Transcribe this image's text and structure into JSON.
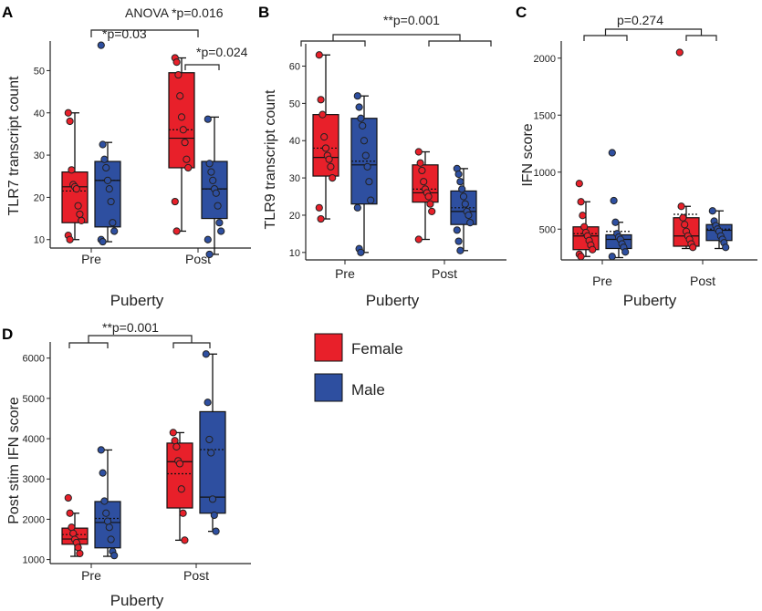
{
  "legend": [
    {
      "label": "Female",
      "color": "#e8202a"
    },
    {
      "label": "Male",
      "color": "#2e4fa0"
    }
  ],
  "chart_data": [
    {
      "panel": "A",
      "type": "box",
      "title": "ANOVA *p=0.016",
      "ylabel": "TLR7 transcript count",
      "xlabel": "Puberty",
      "categories": [
        "Pre",
        "Post"
      ],
      "ylim": [
        8,
        57
      ],
      "yticks": [
        10,
        20,
        30,
        40,
        50
      ],
      "series": [
        {
          "name": "Female",
          "groups": [
            {
              "q1": 14,
              "median": 22.5,
              "q3": 26,
              "mean": 21.5,
              "wmin": 10,
              "wmax": 40,
              "points": [
                40,
                38,
                26.5,
                23,
                22.5,
                22,
                18,
                16,
                14.5,
                11,
                10
              ]
            },
            {
              "q1": 27,
              "median": 34,
              "q3": 49.5,
              "mean": 36,
              "wmin": 12,
              "wmax": 53,
              "points": [
                53,
                52,
                49,
                44,
                39,
                36,
                33,
                29,
                27,
                19,
                12
              ]
            }
          ]
        },
        {
          "name": "Male",
          "groups": [
            {
              "q1": 13,
              "median": 24,
              "q3": 28.5,
              "mean": 24,
              "wmin": 9.5,
              "wmax": 33,
              "points": [
                56,
                32.5,
                29,
                27,
                24,
                22,
                19,
                14,
                12,
                10,
                9.5
              ]
            },
            {
              "q1": 15,
              "median": 22,
              "q3": 28.5,
              "mean": 22,
              "wmin": 6.5,
              "wmax": 39,
              "points": [
                38.5,
                28,
                26,
                24,
                22,
                21,
                18,
                14,
                12,
                10,
                6.5
              ]
            }
          ]
        }
      ],
      "annotations": [
        {
          "text": "*p=0.03",
          "type": "bracket",
          "from": "Pre",
          "to": "Post"
        },
        {
          "text": "*p=0.024",
          "type": "bracket-within",
          "group": "Post"
        }
      ]
    },
    {
      "panel": "B",
      "type": "box",
      "ylabel": "TLR9 transcript count",
      "xlabel": "Puberty",
      "categories": [
        "Pre",
        "Post"
      ],
      "ylim": [
        8,
        66
      ],
      "yticks": [
        10,
        20,
        30,
        40,
        50,
        60
      ],
      "series": [
        {
          "name": "Female",
          "groups": [
            {
              "q1": 30.5,
              "median": 35.5,
              "q3": 47,
              "mean": 38,
              "wmin": 19,
              "wmax": 63,
              "points": [
                63,
                51,
                47,
                41,
                38,
                36,
                35,
                33,
                30,
                22,
                19
              ]
            },
            {
              "q1": 23.5,
              "median": 26,
              "q3": 33.5,
              "mean": 27,
              "wmin": 13.5,
              "wmax": 37,
              "points": [
                37,
                34,
                32,
                29,
                27,
                26,
                25,
                23,
                21,
                13.5
              ]
            }
          ]
        },
        {
          "name": "Male",
          "groups": [
            {
              "q1": 23,
              "median": 33.5,
              "q3": 46,
              "mean": 34.5,
              "wmin": 10,
              "wmax": 52,
              "points": [
                52,
                49,
                46,
                44,
                40,
                36,
                33,
                29,
                24,
                22,
                11,
                10
              ]
            },
            {
              "q1": 17.5,
              "median": 21,
              "q3": 26.5,
              "mean": 22,
              "wmin": 10.5,
              "wmax": 32.5,
              "points": [
                32.5,
                31,
                29,
                27,
                25,
                23,
                21,
                20,
                18,
                16,
                13,
                10.5
              ]
            }
          ]
        }
      ],
      "annotations": [
        {
          "text": "**p=0.001",
          "type": "group-bracket",
          "from": "Pre",
          "to": "Post"
        }
      ]
    },
    {
      "panel": "C",
      "type": "box",
      "ylabel": "IFN score",
      "xlabel": "Puberty",
      "categories": [
        "Pre",
        "Post"
      ],
      "ylim": [
        230,
        2150
      ],
      "yticks": [
        500,
        1000,
        1500,
        2000
      ],
      "series": [
        {
          "name": "Female",
          "groups": [
            {
              "q1": 320,
              "median": 440,
              "q3": 520,
              "mean": 460,
              "wmin": 260,
              "wmax": 740,
              "points": [
                900,
                740,
                620,
                520,
                470,
                440,
                400,
                360,
                320,
                280,
                260
              ]
            },
            {
              "q1": 350,
              "median": 440,
              "q3": 600,
              "mean": 630,
              "wmin": 330,
              "wmax": 700,
              "points": [
                2050,
                700,
                600,
                540,
                480,
                440,
                410,
                370,
                340
              ]
            }
          ]
        },
        {
          "name": "Male",
          "groups": [
            {
              "q1": 330,
              "median": 410,
              "q3": 450,
              "mean": 480,
              "wmin": 250,
              "wmax": 560,
              "points": [
                1170,
                750,
                560,
                460,
                430,
                410,
                370,
                340,
                300,
                260
              ]
            },
            {
              "q1": 400,
              "median": 490,
              "q3": 540,
              "mean": 500,
              "wmin": 330,
              "wmax": 660,
              "points": [
                660,
                570,
                530,
                500,
                480,
                440,
                410,
                380,
                340
              ]
            }
          ]
        }
      ],
      "annotations": [
        {
          "text": "p=0.274",
          "type": "group-bracket",
          "from": "Pre",
          "to": "Post"
        }
      ]
    },
    {
      "panel": "D",
      "type": "box",
      "ylabel": "Post stim IFN score",
      "xlabel": "Puberty",
      "categories": [
        "Pre",
        "Post"
      ],
      "ylim": [
        900,
        6400
      ],
      "yticks": [
        1000,
        2000,
        3000,
        4000,
        5000,
        6000
      ],
      "series": [
        {
          "name": "Female",
          "groups": [
            {
              "q1": 1380,
              "median": 1510,
              "q3": 1780,
              "mean": 1620,
              "wmin": 1080,
              "wmax": 2150,
              "points": [
                2530,
                2150,
                1800,
                1650,
                1500,
                1420,
                1300,
                1150
              ]
            },
            {
              "q1": 2280,
              "median": 3430,
              "q3": 3890,
              "mean": 3130,
              "wmin": 1480,
              "wmax": 4150,
              "points": [
                4150,
                3950,
                3800,
                3450,
                3380,
                2750,
                2150,
                1480
              ]
            }
          ]
        },
        {
          "name": "Male",
          "groups": [
            {
              "q1": 1290,
              "median": 1920,
              "q3": 2440,
              "mean": 2020,
              "wmin": 1080,
              "wmax": 3720,
              "points": [
                3720,
                3150,
                2450,
                2150,
                1950,
                1800,
                1500,
                1200,
                1100
              ]
            },
            {
              "q1": 2150,
              "median": 2550,
              "q3": 4670,
              "mean": 3730,
              "wmin": 1700,
              "wmax": 6100,
              "points": [
                6100,
                4900,
                3980,
                3650,
                2500,
                2100,
                1700
              ]
            }
          ]
        }
      ],
      "annotations": [
        {
          "text": "**p=0.001",
          "type": "group-bracket",
          "from": "Pre",
          "to": "Post"
        }
      ]
    }
  ]
}
